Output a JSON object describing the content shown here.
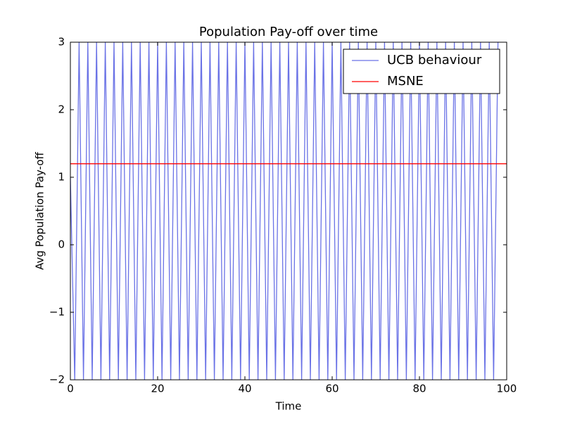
{
  "chart_data": {
    "type": "line",
    "title": "Population Pay-off over time",
    "x_label": "Time",
    "y_label": "Avg Population Pay-off",
    "xlim": [
      0,
      100
    ],
    "ylim": [
      -2,
      3
    ],
    "xticks": [
      0,
      20,
      40,
      60,
      80,
      100
    ],
    "yticks": [
      {
        "value": -2,
        "label": "−2"
      },
      {
        "value": -1,
        "label": "−1"
      },
      0,
      1,
      2,
      3
    ],
    "legend": "upper right",
    "series": [
      {
        "name": "UCB behaviour",
        "color": "#6a72e6",
        "x": [
          0,
          1,
          2,
          3,
          4,
          5,
          6,
          7,
          8,
          9,
          10,
          11,
          12,
          13,
          14,
          15,
          16,
          17,
          18,
          19,
          20,
          21,
          22,
          23,
          24,
          25,
          26,
          27,
          28,
          29,
          30,
          31,
          32,
          33,
          34,
          35,
          36,
          37,
          38,
          39,
          40,
          41,
          42,
          43,
          44,
          45,
          46,
          47,
          48,
          49,
          50,
          51,
          52,
          53,
          54,
          55,
          56,
          57,
          58,
          59,
          60,
          61,
          62,
          63,
          64,
          65,
          66,
          67,
          68,
          69,
          70,
          71,
          72,
          73,
          74,
          75,
          76,
          77,
          78,
          79,
          80,
          81,
          82,
          83,
          84,
          85,
          86,
          87,
          88,
          89,
          90,
          91,
          92,
          93,
          94,
          95,
          96,
          97,
          98
        ],
        "values": [
          1,
          -2,
          3,
          -2,
          3,
          -2,
          3,
          -2,
          3,
          -2,
          3,
          -2,
          3,
          -2,
          3,
          -2,
          3,
          -2,
          3,
          -2,
          3,
          -2,
          3,
          -2,
          3,
          -2,
          3,
          -2,
          3,
          -2,
          3,
          -2,
          3,
          -2,
          3,
          -2,
          3,
          -2,
          3,
          -2,
          3,
          -2,
          3,
          -2,
          3,
          -2,
          3,
          -2,
          3,
          -2,
          3,
          -2,
          3,
          -2,
          3,
          -2,
          3,
          -2,
          3,
          -2,
          3,
          -2,
          3,
          -2,
          3,
          -2,
          3,
          -2,
          3,
          -2,
          3,
          -2,
          3,
          -2,
          3,
          -2,
          3,
          -2,
          3,
          -2,
          3,
          -2,
          3,
          -2,
          3,
          -2,
          3,
          -2,
          3,
          -2,
          3,
          -2,
          3,
          -2,
          3,
          -2,
          3,
          -2,
          3
        ]
      },
      {
        "name": "MSNE",
        "color": "#ff0000",
        "x": [
          0,
          100
        ],
        "values": [
          1.2,
          1.2
        ]
      }
    ]
  }
}
